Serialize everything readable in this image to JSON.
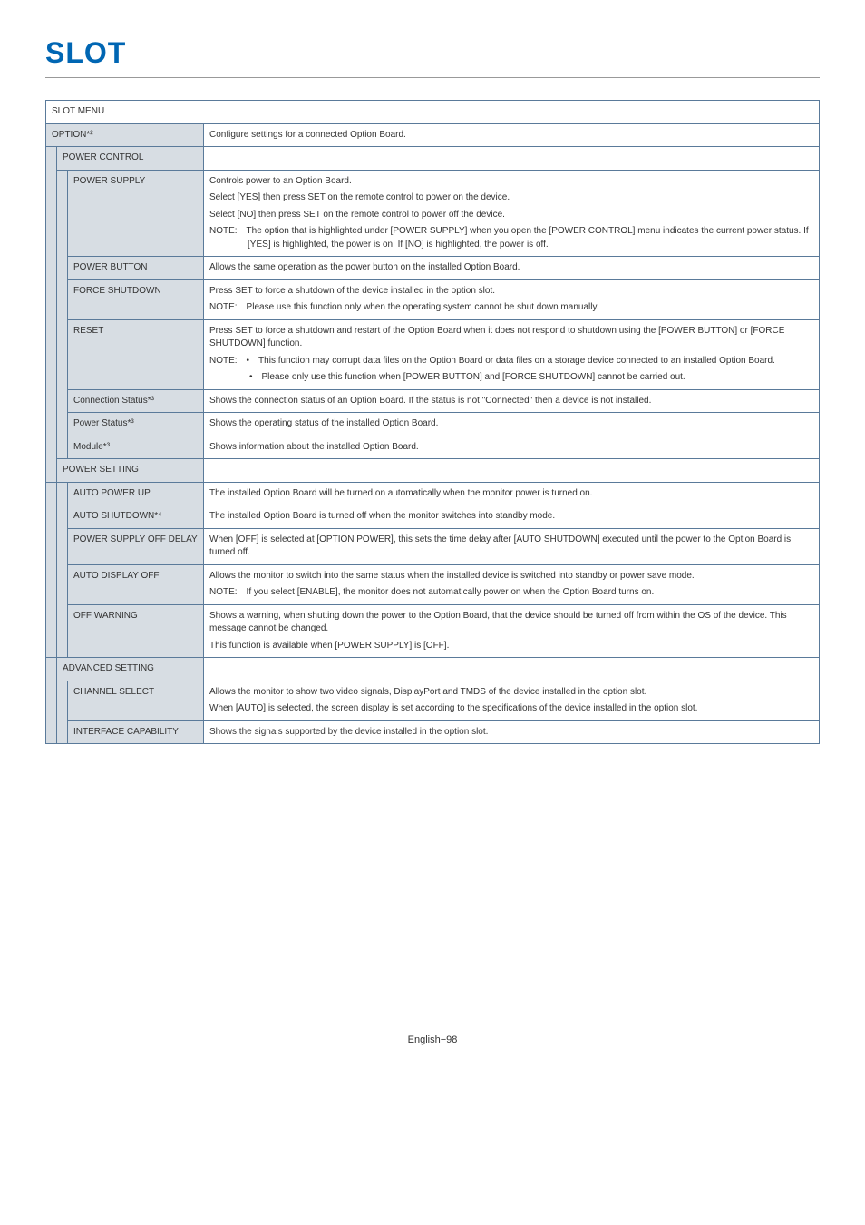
{
  "title": "SLOT",
  "footer": "English−98",
  "colors": {
    "title": "#0066b3",
    "rule": "#999999",
    "border": "#5a7a9a",
    "shade": "#d7dde3",
    "white": "#ffffff",
    "text": "#333333"
  },
  "table": {
    "slot_menu": "SLOT MENU",
    "option": {
      "label": "OPTION*²",
      "desc": "Configure settings for a connected Option Board."
    },
    "power_control": {
      "label": "POWER CONTROL"
    },
    "power_supply": {
      "label": "POWER SUPPLY",
      "p1": "Controls power to an Option Board.",
      "p2": "Select [YES] then press SET on the remote control to power on the device.",
      "p3": "Select [NO] then press SET on the remote control to power off the device.",
      "note": "NOTE: The option that is highlighted under [POWER SUPPLY] when you open the [POWER CONTROL] menu indicates the current power status. If [YES] is highlighted, the power is on. If [NO] is highlighted, the power is off."
    },
    "power_button": {
      "label": "POWER BUTTON",
      "desc": "Allows the same operation as the power button on the installed Option Board."
    },
    "force_shutdown": {
      "label": "FORCE SHUTDOWN",
      "p1": "Press SET to force a shutdown of the device installed in the option slot.",
      "note": "NOTE: Please use this function only when the operating system cannot be shut down manually."
    },
    "reset": {
      "label": "RESET",
      "p1": "Press SET to force a shutdown and restart of the Option Board when it does not respond to shutdown using the [POWER BUTTON] or [FORCE SHUTDOWN] function.",
      "note1": "NOTE: • This function may corrupt data files on the Option Board or data files on a storage device connected to an installed Option Board.",
      "note2": "• Please only use this function when [POWER BUTTON] and [FORCE SHUTDOWN] cannot be carried out."
    },
    "connection_status": {
      "label": "Connection Status*³",
      "desc": "Shows the connection status of an Option Board. If the status is not \"Connected\" then a device is not installed."
    },
    "power_status": {
      "label": "Power Status*³",
      "desc": "Shows the operating status of the installed Option Board."
    },
    "module": {
      "label": "Module*³",
      "desc": "Shows information about the installed Option Board."
    },
    "power_setting": {
      "label": "POWER SETTING"
    },
    "auto_power_up": {
      "label": "AUTO POWER UP",
      "desc": "The installed Option Board will be turned on automatically when the monitor power is turned on."
    },
    "auto_shutdown": {
      "label": "AUTO SHUTDOWN*⁴",
      "desc": "The installed Option Board is turned off when the monitor switches into standby mode."
    },
    "power_supply_off_delay": {
      "label": "POWER SUPPLY OFF DELAY",
      "desc": "When [OFF] is selected at [OPTION POWER], this sets the time delay after [AUTO SHUTDOWN] executed until the power to the Option Board is turned off."
    },
    "auto_display_off": {
      "label": "AUTO DISPLAY OFF",
      "p1": "Allows the monitor to switch into the same status when the installed device is switched into standby or power save mode.",
      "note": "NOTE: If you select [ENABLE], the monitor does not automatically power on when the Option Board turns on."
    },
    "off_warning": {
      "label": "OFF WARNING",
      "p1": "Shows a warning, when shutting down the power to the Option Board, that the device should be turned off from within the OS of the device. This message cannot be changed.",
      "p2": "This function is available when [POWER SUPPLY] is [OFF]."
    },
    "advanced_setting": {
      "label": "ADVANCED SETTING"
    },
    "channel_select": {
      "label": "CHANNEL SELECT",
      "p1": "Allows the monitor to show two video signals, DisplayPort and TMDS of the device installed in the option slot.",
      "p2": "When [AUTO] is selected, the screen display is set according to the specifications of the device installed in the option slot."
    },
    "interface_capability": {
      "label": "INTERFACE CAPABILITY",
      "desc": "Shows the signals supported by the device installed in the option slot."
    }
  }
}
